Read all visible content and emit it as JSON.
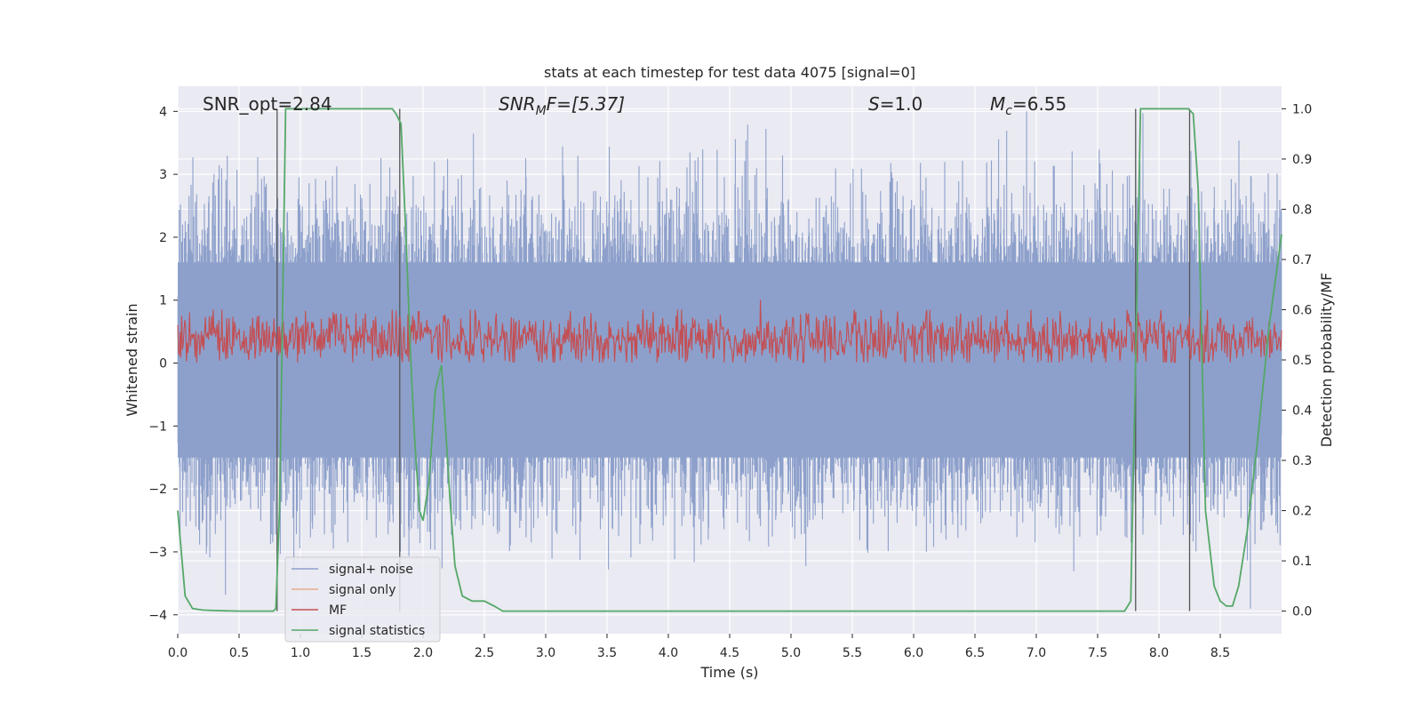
{
  "chart_data": {
    "type": "line",
    "title": "stats at each timestep for test data 4075 [signal=0]",
    "xlabel": "Time (s)",
    "ylabel": "Whitened strain",
    "y2label": "Detection probability/MF",
    "xlim": [
      0.0,
      9.0
    ],
    "ylim": [
      -4.3,
      4.4
    ],
    "y2lim": [
      -0.045,
      1.045
    ],
    "xticks": [
      0.0,
      0.5,
      1.0,
      1.5,
      2.0,
      2.5,
      3.0,
      3.5,
      4.0,
      4.5,
      5.0,
      5.5,
      6.0,
      6.5,
      7.0,
      7.5,
      8.0,
      8.5
    ],
    "xtick_labels": [
      "0.0",
      "0.5",
      "1.0",
      "1.5",
      "2.0",
      "2.5",
      "3.0",
      "3.5",
      "4.0",
      "4.5",
      "5.0",
      "5.5",
      "6.0",
      "6.5",
      "7.0",
      "7.5",
      "8.0",
      "8.5"
    ],
    "yticks": [
      -4,
      -3,
      -2,
      -1,
      0,
      1,
      2,
      3,
      4
    ],
    "ytick_labels": [
      "−4",
      "−3",
      "−2",
      "−1",
      "0",
      "1",
      "2",
      "3",
      "4"
    ],
    "y2ticks": [
      0.0,
      0.1,
      0.2,
      0.3,
      0.4,
      0.5,
      0.6,
      0.7,
      0.8,
      0.9,
      1.0
    ],
    "y2tick_labels": [
      "0.0",
      "0.1",
      "0.2",
      "0.3",
      "0.4",
      "0.5",
      "0.6",
      "0.7",
      "0.8",
      "0.9",
      "1.0"
    ],
    "grid": true,
    "legend_position": "lower-left",
    "annotations": {
      "snr_opt": "SNR_opt=2.84",
      "snr_mf_base": "SNR",
      "snr_mf_sub": "M",
      "snr_mf_rest": "F=[5.37]",
      "s_var": "S",
      "s_rest": "=1.0",
      "mc_var": "M",
      "mc_sub": "c",
      "mc_rest": "=6.55"
    },
    "series": [
      {
        "name": "signal+ noise",
        "axis": "left",
        "color": "#8da0cb",
        "style": "noisy-envelope",
        "noise_seed": 4075,
        "core_range": [
          -1.5,
          1.6
        ],
        "peak_range": [
          -3.9,
          4.0
        ]
      },
      {
        "name": "signal only",
        "axis": "left",
        "color": "#e8a98a",
        "values": []
      },
      {
        "name": "MF",
        "axis": "right",
        "color": "#c44e52",
        "style": "noisy-band",
        "band_range": [
          0.495,
          0.59
        ],
        "spike": {
          "x": 4.75,
          "y": 0.62
        }
      },
      {
        "name": "signal statistics",
        "axis": "right",
        "color": "#55a868",
        "x": [
          0.0,
          0.06,
          0.12,
          0.2,
          0.3,
          0.5,
          0.7,
          0.78,
          0.8,
          0.83,
          0.88,
          1.0,
          1.5,
          1.75,
          1.78,
          1.82,
          1.86,
          1.9,
          1.93,
          1.97,
          2.0,
          2.05,
          2.1,
          2.15,
          2.18,
          2.22,
          2.26,
          2.32,
          2.4,
          2.5,
          2.58,
          2.65,
          2.72,
          3.0,
          4.0,
          5.0,
          6.0,
          7.0,
          7.5,
          7.72,
          7.77,
          7.81,
          7.85,
          7.9,
          8.0,
          8.2,
          8.24,
          8.28,
          8.32,
          8.38,
          8.45,
          8.5,
          8.55,
          8.6,
          8.65,
          8.72,
          8.8,
          8.9,
          9.0
        ],
        "values": [
          0.2,
          0.03,
          0.005,
          0.002,
          0.001,
          0.0,
          0.0,
          0.0,
          0.005,
          0.2,
          1.0,
          1.0,
          1.0,
          1.0,
          0.99,
          0.97,
          0.75,
          0.5,
          0.35,
          0.2,
          0.18,
          0.26,
          0.44,
          0.49,
          0.38,
          0.22,
          0.09,
          0.03,
          0.02,
          0.02,
          0.01,
          0.0,
          0.0,
          0.0,
          0.0,
          0.0,
          0.0,
          0.0,
          0.0,
          0.0,
          0.02,
          0.5,
          1.0,
          1.0,
          1.0,
          1.0,
          1.0,
          0.99,
          0.84,
          0.2,
          0.05,
          0.02,
          0.01,
          0.01,
          0.05,
          0.16,
          0.33,
          0.57,
          0.75
        ]
      }
    ],
    "event_lines": [
      0.81,
      1.81,
      7.81,
      8.25
    ]
  }
}
